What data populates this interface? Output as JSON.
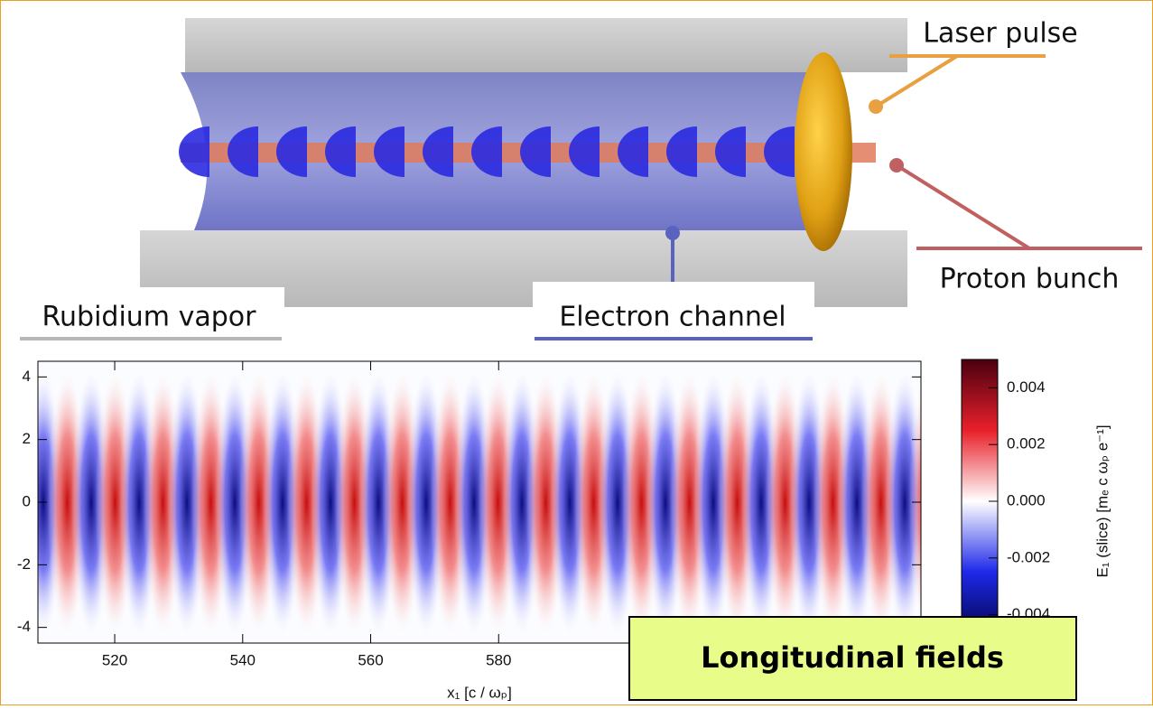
{
  "labels": {
    "laser": "Laser pulse",
    "proton": "Proton bunch",
    "vapor": "Rubidium vapor",
    "channel": "Electron channel",
    "fields": "Longitudinal fields"
  },
  "plot": {
    "xlabel": "x₁ [c / ωₚ]",
    "xlim": [
      508,
      646
    ],
    "ylim": [
      -4.5,
      4.5
    ],
    "xticks": [
      520,
      540,
      560,
      580
    ],
    "yticks": [
      4,
      2,
      0,
      -2,
      -4
    ]
  },
  "colorbar": {
    "label": "E₁ (slice) [mₑ c ωₚ e⁻¹]",
    "lim": [
      -0.005,
      0.005
    ],
    "ticks": [
      0.004,
      0.002,
      {
        "value": 0,
        "label": "0.000"
      },
      -0.002,
      -0.004
    ]
  }
}
